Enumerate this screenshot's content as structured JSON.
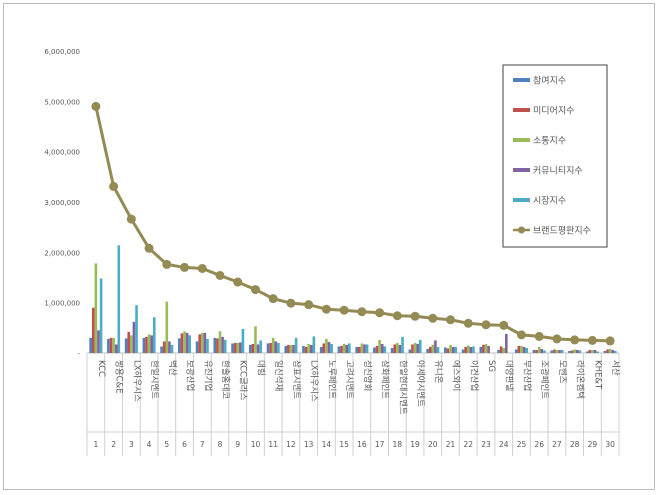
{
  "chart_data": {
    "type": "bar+line",
    "title": "",
    "xlabel": "",
    "ylabel": "",
    "ylim": [
      0,
      6000000
    ],
    "yticks": [
      0,
      1000000,
      2000000,
      3000000,
      4000000,
      5000000,
      6000000
    ],
    "ytick_labels": [
      "-",
      "1,000,000",
      "2,000,000",
      "3,000,000",
      "4,000,000",
      "5,000,000",
      "6,000,000"
    ],
    "grid": false,
    "legend_position": "top-right",
    "categories": [
      "KCC",
      "쌍용C&E",
      "LX하우시스",
      "한일시멘트",
      "벽산",
      "보광산업",
      "유진기업",
      "한솔홈데코",
      "KCC글라스",
      "대림",
      "일신석재",
      "삼표시멘트",
      "LX하우시스",
      "노루페인트",
      "고려시멘트",
      "성신양회",
      "삼화페인트",
      "한일현대시멘트",
      "아세아시멘트",
      "유니온",
      "에스와이",
      "이건산업",
      "SG",
      "대양판넬",
      "부산산업",
      "조광페인트",
      "모헨즈",
      "라이온켐텍",
      "KHE&T",
      "서산"
    ],
    "category_numbers": [
      "1",
      "2",
      "3",
      "4",
      "5",
      "6",
      "7",
      "8",
      "9",
      "10",
      "11",
      "12",
      "13",
      "14",
      "15",
      "16",
      "17",
      "18",
      "19",
      "20",
      "21",
      "22",
      "23",
      "24",
      "25",
      "26",
      "27",
      "28",
      "29",
      "30"
    ],
    "series": [
      {
        "name": "참여지수",
        "kind": "bar",
        "color": "#4f81bd",
        "values": [
          300000,
          280000,
          290000,
          300000,
          130000,
          290000,
          230000,
          300000,
          190000,
          160000,
          190000,
          140000,
          140000,
          120000,
          130000,
          120000,
          110000,
          100000,
          70000,
          80000,
          110000,
          70000,
          120000,
          60000,
          70000,
          60000,
          50000,
          40000,
          30000,
          40000
        ]
      },
      {
        "name": "미디어지수",
        "kind": "bar",
        "color": "#c0504d",
        "values": [
          900000,
          300000,
          420000,
          320000,
          230000,
          390000,
          370000,
          290000,
          200000,
          180000,
          200000,
          160000,
          120000,
          190000,
          140000,
          120000,
          140000,
          170000,
          170000,
          120000,
          90000,
          120000,
          160000,
          130000,
          140000,
          60000,
          70000,
          50000,
          60000,
          70000
        ]
      },
      {
        "name": "소통지수",
        "kind": "bar",
        "color": "#9bbb59",
        "values": [
          1780000,
          300000,
          350000,
          370000,
          1020000,
          430000,
          400000,
          430000,
          200000,
          530000,
          300000,
          160000,
          180000,
          280000,
          180000,
          190000,
          260000,
          200000,
          200000,
          160000,
          160000,
          150000,
          180000,
          100000,
          140000,
          120000,
          60000,
          70000,
          60000,
          80000
        ]
      },
      {
        "name": "커뮤니티지수",
        "kind": "bar",
        "color": "#8064a2",
        "values": [
          450000,
          170000,
          620000,
          350000,
          230000,
          400000,
          400000,
          320000,
          210000,
          170000,
          230000,
          160000,
          160000,
          220000,
          160000,
          170000,
          180000,
          160000,
          180000,
          250000,
          120000,
          120000,
          140000,
          380000,
          120000,
          80000,
          60000,
          60000,
          60000,
          60000
        ]
      },
      {
        "name": "시장지수",
        "kind": "bar",
        "color": "#4bacc6",
        "values": [
          1480000,
          2140000,
          950000,
          710000,
          160000,
          350000,
          280000,
          260000,
          480000,
          250000,
          200000,
          300000,
          330000,
          180000,
          190000,
          170000,
          130000,
          320000,
          260000,
          120000,
          120000,
          130000,
          0,
          0,
          100000,
          50000,
          60000,
          50000,
          30000,
          40000
        ]
      },
      {
        "name": "브랜드평판지수",
        "kind": "line",
        "color": "#948a54",
        "values": [
          4900000,
          3310000,
          2660000,
          2080000,
          1760000,
          1700000,
          1680000,
          1540000,
          1410000,
          1260000,
          1080000,
          990000,
          960000,
          870000,
          850000,
          820000,
          800000,
          740000,
          730000,
          690000,
          660000,
          590000,
          560000,
          550000,
          360000,
          330000,
          280000,
          260000,
          250000,
          240000
        ]
      }
    ]
  }
}
